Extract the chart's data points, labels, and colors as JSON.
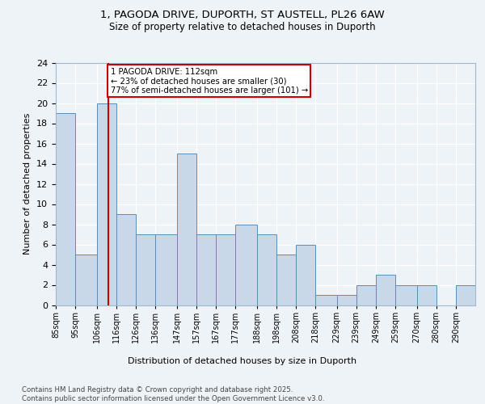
{
  "title_line1": "1, PAGODA DRIVE, DUPORTH, ST AUSTELL, PL26 6AW",
  "title_line2": "Size of property relative to detached houses in Duporth",
  "xlabel": "Distribution of detached houses by size in Duporth",
  "ylabel": "Number of detached properties",
  "bin_edges": [
    85,
    95,
    106,
    116,
    126,
    136,
    147,
    157,
    167,
    177,
    188,
    198,
    208,
    218,
    229,
    239,
    249,
    259,
    270,
    280,
    290,
    300
  ],
  "bin_labels": [
    "85sqm",
    "95sqm",
    "106sqm",
    "116sqm",
    "126sqm",
    "136sqm",
    "147sqm",
    "157sqm",
    "167sqm",
    "177sqm",
    "188sqm",
    "198sqm",
    "208sqm",
    "218sqm",
    "229sqm",
    "239sqm",
    "249sqm",
    "259sqm",
    "270sqm",
    "280sqm",
    "290sqm"
  ],
  "counts": [
    19,
    5,
    20,
    9,
    7,
    7,
    15,
    7,
    7,
    8,
    7,
    5,
    6,
    1,
    1,
    2,
    3,
    2,
    2,
    0,
    2
  ],
  "bar_color": "#c8d8e8",
  "bar_edge_color": "#5a8db5",
  "property_line_x": 112,
  "property_line_color": "#cc0000",
  "annotation_line1": "1 PAGODA DRIVE: 112sqm",
  "annotation_line2": "← 23% of detached houses are smaller (30)",
  "annotation_line3": "77% of semi-detached houses are larger (101) →",
  "annotation_box_color": "#cc0000",
  "ylim": [
    0,
    24
  ],
  "yticks": [
    0,
    2,
    4,
    6,
    8,
    10,
    12,
    14,
    16,
    18,
    20,
    22,
    24
  ],
  "footer_text": "Contains HM Land Registry data © Crown copyright and database right 2025.\nContains public sector information licensed under the Open Government Licence v3.0.",
  "background_color": "#eef3f8",
  "grid_color": "#ffffff"
}
